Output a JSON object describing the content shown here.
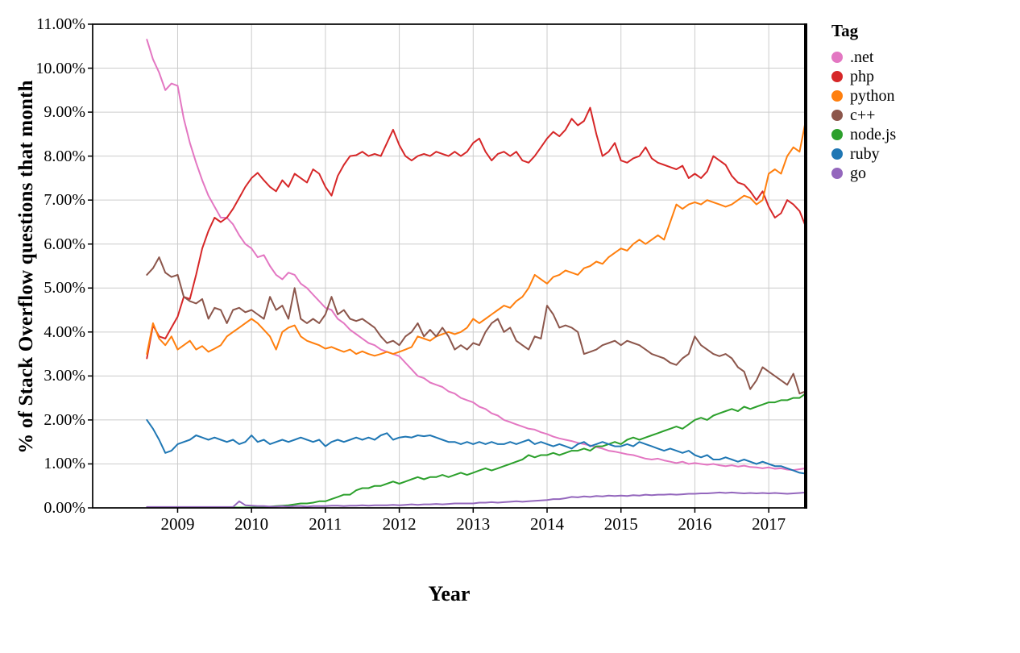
{
  "chart_data": {
    "type": "line",
    "title": "",
    "xlabel": "Year",
    "ylabel": "% of Stack Overflow questions that month",
    "legend_title": "Tag",
    "legend_position": "right",
    "grid": true,
    "grid_color": "#cccccc",
    "xlim": [
      2007.85,
      2017.5
    ],
    "ylim": [
      0,
      11
    ],
    "x_tick_values": [
      2009,
      2010,
      2011,
      2012,
      2013,
      2014,
      2015,
      2016,
      2017
    ],
    "x_tick_labels": [
      "2009",
      "2010",
      "2011",
      "2012",
      "2013",
      "2014",
      "2015",
      "2016",
      "2017"
    ],
    "y_tick_values": [
      0,
      1,
      2,
      3,
      4,
      5,
      6,
      7,
      8,
      9,
      10,
      11
    ],
    "y_tick_labels": [
      "0.00%",
      "1.00%",
      "2.00%",
      "3.00%",
      "4.00%",
      "5.00%",
      "6.00%",
      "7.00%",
      "8.00%",
      "9.00%",
      "10.00%",
      "11.00%"
    ],
    "x_start": 2008.5833,
    "x_step": 0.083333,
    "series": [
      {
        "name": ".net",
        "color": "#e377c2",
        "values": [
          10.65,
          10.2,
          9.9,
          9.5,
          9.65,
          9.6,
          8.85,
          8.3,
          7.85,
          7.45,
          7.1,
          6.85,
          6.6,
          6.6,
          6.45,
          6.2,
          6.0,
          5.9,
          5.7,
          5.75,
          5.5,
          5.3,
          5.2,
          5.35,
          5.3,
          5.1,
          5.0,
          4.85,
          4.7,
          4.55,
          4.5,
          4.3,
          4.2,
          4.05,
          3.95,
          3.85,
          3.75,
          3.7,
          3.6,
          3.55,
          3.5,
          3.45,
          3.3,
          3.15,
          3.0,
          2.95,
          2.85,
          2.8,
          2.75,
          2.65,
          2.6,
          2.5,
          2.45,
          2.4,
          2.3,
          2.25,
          2.15,
          2.1,
          2.0,
          1.95,
          1.9,
          1.85,
          1.8,
          1.78,
          1.72,
          1.68,
          1.62,
          1.58,
          1.55,
          1.52,
          1.48,
          1.45,
          1.42,
          1.38,
          1.35,
          1.3,
          1.28,
          1.25,
          1.22,
          1.2,
          1.16,
          1.12,
          1.1,
          1.12,
          1.08,
          1.05,
          1.02,
          1.05,
          1.0,
          1.02,
          1.0,
          0.98,
          1.0,
          0.97,
          0.95,
          0.97,
          0.94,
          0.96,
          0.93,
          0.92,
          0.9,
          0.92,
          0.89,
          0.9,
          0.87,
          0.86,
          0.88,
          0.9
        ]
      },
      {
        "name": "php",
        "color": "#d62728",
        "values": [
          3.4,
          4.15,
          3.9,
          3.85,
          4.1,
          4.35,
          4.8,
          4.75,
          5.3,
          5.9,
          6.3,
          6.6,
          6.5,
          6.6,
          6.8,
          7.05,
          7.3,
          7.5,
          7.62,
          7.45,
          7.3,
          7.2,
          7.45,
          7.3,
          7.6,
          7.5,
          7.4,
          7.7,
          7.6,
          7.3,
          7.1,
          7.55,
          7.8,
          8.0,
          8.02,
          8.1,
          8.0,
          8.05,
          8.0,
          8.3,
          8.6,
          8.25,
          8.0,
          7.9,
          8.0,
          8.05,
          8.0,
          8.1,
          8.05,
          8.0,
          8.1,
          8.0,
          8.1,
          8.3,
          8.4,
          8.1,
          7.9,
          8.05,
          8.1,
          8.0,
          8.1,
          7.9,
          7.85,
          8.0,
          8.2,
          8.4,
          8.55,
          8.45,
          8.6,
          8.85,
          8.7,
          8.8,
          9.1,
          8.5,
          8.0,
          8.1,
          8.3,
          7.9,
          7.85,
          7.95,
          8.0,
          8.2,
          7.95,
          7.85,
          7.8,
          7.75,
          7.7,
          7.78,
          7.5,
          7.6,
          7.5,
          7.65,
          8.0,
          7.9,
          7.8,
          7.55,
          7.4,
          7.35,
          7.2,
          7.0,
          7.2,
          6.85,
          6.6,
          6.7,
          7.0,
          6.9,
          6.75,
          6.4
        ]
      },
      {
        "name": "python",
        "color": "#ff7f0e",
        "values": [
          3.5,
          4.2,
          3.85,
          3.7,
          3.9,
          3.6,
          3.7,
          3.8,
          3.6,
          3.68,
          3.55,
          3.62,
          3.7,
          3.9,
          4.0,
          4.1,
          4.2,
          4.3,
          4.2,
          4.05,
          3.9,
          3.6,
          4.0,
          4.1,
          4.15,
          3.9,
          3.8,
          3.75,
          3.7,
          3.62,
          3.66,
          3.6,
          3.55,
          3.6,
          3.5,
          3.56,
          3.5,
          3.46,
          3.5,
          3.55,
          3.5,
          3.55,
          3.6,
          3.66,
          3.9,
          3.85,
          3.8,
          3.9,
          3.95,
          4.0,
          3.95,
          4.0,
          4.1,
          4.3,
          4.2,
          4.3,
          4.4,
          4.5,
          4.6,
          4.55,
          4.7,
          4.8,
          5.0,
          5.3,
          5.2,
          5.1,
          5.25,
          5.3,
          5.4,
          5.35,
          5.3,
          5.45,
          5.5,
          5.6,
          5.55,
          5.7,
          5.8,
          5.9,
          5.85,
          6.0,
          6.1,
          6.0,
          6.1,
          6.2,
          6.1,
          6.5,
          6.9,
          6.8,
          6.9,
          6.95,
          6.9,
          7.0,
          6.95,
          6.9,
          6.85,
          6.9,
          7.0,
          7.1,
          7.05,
          6.9,
          7.0,
          7.6,
          7.7,
          7.6,
          8.0,
          8.2,
          8.1,
          8.8
        ]
      },
      {
        "name": "c++",
        "color": "#8c564b",
        "values": [
          5.3,
          5.45,
          5.7,
          5.35,
          5.25,
          5.3,
          4.8,
          4.7,
          4.65,
          4.75,
          4.3,
          4.55,
          4.5,
          4.2,
          4.5,
          4.55,
          4.45,
          4.5,
          4.4,
          4.3,
          4.8,
          4.5,
          4.6,
          4.3,
          5.0,
          4.3,
          4.2,
          4.3,
          4.2,
          4.4,
          4.8,
          4.4,
          4.5,
          4.3,
          4.25,
          4.3,
          4.2,
          4.1,
          3.9,
          3.75,
          3.8,
          3.7,
          3.9,
          4.0,
          4.2,
          3.9,
          4.05,
          3.9,
          4.1,
          3.9,
          3.6,
          3.7,
          3.6,
          3.75,
          3.7,
          4.0,
          4.2,
          4.3,
          4.0,
          4.1,
          3.8,
          3.7,
          3.6,
          3.9,
          3.85,
          4.6,
          4.4,
          4.1,
          4.15,
          4.1,
          4.0,
          3.5,
          3.55,
          3.6,
          3.7,
          3.75,
          3.8,
          3.7,
          3.8,
          3.75,
          3.7,
          3.6,
          3.5,
          3.45,
          3.4,
          3.3,
          3.25,
          3.4,
          3.5,
          3.9,
          3.7,
          3.6,
          3.5,
          3.45,
          3.5,
          3.4,
          3.2,
          3.1,
          2.7,
          2.9,
          3.2,
          3.1,
          3.0,
          2.9,
          2.8,
          3.05,
          2.6,
          2.65
        ]
      },
      {
        "name": "node.js",
        "color": "#2ca02c",
        "values": [
          0.0,
          0.0,
          0.0,
          0.0,
          0.0,
          0.0,
          0.0,
          0.0,
          0.0,
          0.0,
          0.0,
          0.0,
          0.0,
          0.01,
          0.01,
          0.01,
          0.01,
          0.01,
          0.02,
          0.02,
          0.03,
          0.04,
          0.05,
          0.06,
          0.08,
          0.1,
          0.1,
          0.12,
          0.15,
          0.15,
          0.2,
          0.25,
          0.3,
          0.3,
          0.4,
          0.45,
          0.45,
          0.5,
          0.5,
          0.55,
          0.6,
          0.55,
          0.6,
          0.65,
          0.7,
          0.65,
          0.7,
          0.7,
          0.75,
          0.7,
          0.75,
          0.8,
          0.75,
          0.8,
          0.85,
          0.9,
          0.85,
          0.9,
          0.95,
          1.0,
          1.05,
          1.1,
          1.2,
          1.15,
          1.2,
          1.2,
          1.25,
          1.2,
          1.25,
          1.3,
          1.3,
          1.35,
          1.3,
          1.4,
          1.4,
          1.45,
          1.5,
          1.45,
          1.55,
          1.6,
          1.55,
          1.6,
          1.65,
          1.7,
          1.75,
          1.8,
          1.85,
          1.8,
          1.9,
          2.0,
          2.05,
          2.0,
          2.1,
          2.15,
          2.2,
          2.25,
          2.2,
          2.3,
          2.25,
          2.3,
          2.35,
          2.4,
          2.4,
          2.45,
          2.45,
          2.5,
          2.5,
          2.6
        ]
      },
      {
        "name": "ruby",
        "color": "#1f77b4",
        "values": [
          2.0,
          1.8,
          1.55,
          1.25,
          1.3,
          1.45,
          1.5,
          1.55,
          1.65,
          1.6,
          1.55,
          1.6,
          1.55,
          1.5,
          1.55,
          1.45,
          1.5,
          1.65,
          1.5,
          1.55,
          1.45,
          1.5,
          1.55,
          1.5,
          1.55,
          1.6,
          1.55,
          1.5,
          1.55,
          1.4,
          1.5,
          1.55,
          1.5,
          1.55,
          1.6,
          1.55,
          1.6,
          1.55,
          1.65,
          1.7,
          1.55,
          1.6,
          1.62,
          1.6,
          1.65,
          1.63,
          1.65,
          1.6,
          1.55,
          1.5,
          1.5,
          1.45,
          1.5,
          1.45,
          1.5,
          1.45,
          1.5,
          1.45,
          1.45,
          1.5,
          1.45,
          1.5,
          1.55,
          1.45,
          1.5,
          1.45,
          1.4,
          1.45,
          1.4,
          1.35,
          1.45,
          1.5,
          1.4,
          1.45,
          1.5,
          1.45,
          1.4,
          1.4,
          1.45,
          1.4,
          1.5,
          1.45,
          1.4,
          1.35,
          1.3,
          1.35,
          1.3,
          1.25,
          1.3,
          1.2,
          1.15,
          1.2,
          1.1,
          1.1,
          1.15,
          1.1,
          1.05,
          1.1,
          1.05,
          1.0,
          1.05,
          1.0,
          0.95,
          0.95,
          0.9,
          0.85,
          0.8,
          0.78
        ]
      },
      {
        "name": "go",
        "color": "#9467bd",
        "values": [
          0.02,
          0.02,
          0.02,
          0.02,
          0.02,
          0.02,
          0.02,
          0.02,
          0.02,
          0.02,
          0.02,
          0.02,
          0.02,
          0.02,
          0.02,
          0.15,
          0.06,
          0.05,
          0.04,
          0.04,
          0.03,
          0.03,
          0.04,
          0.03,
          0.04,
          0.04,
          0.03,
          0.04,
          0.04,
          0.04,
          0.05,
          0.05,
          0.04,
          0.05,
          0.05,
          0.06,
          0.05,
          0.06,
          0.06,
          0.06,
          0.07,
          0.06,
          0.07,
          0.08,
          0.07,
          0.08,
          0.08,
          0.09,
          0.08,
          0.09,
          0.1,
          0.1,
          0.1,
          0.1,
          0.12,
          0.12,
          0.13,
          0.12,
          0.13,
          0.14,
          0.15,
          0.14,
          0.15,
          0.16,
          0.17,
          0.18,
          0.2,
          0.2,
          0.22,
          0.25,
          0.24,
          0.26,
          0.25,
          0.27,
          0.26,
          0.28,
          0.27,
          0.28,
          0.27,
          0.29,
          0.28,
          0.3,
          0.29,
          0.3,
          0.3,
          0.31,
          0.3,
          0.31,
          0.32,
          0.32,
          0.33,
          0.33,
          0.34,
          0.35,
          0.34,
          0.35,
          0.34,
          0.33,
          0.34,
          0.33,
          0.34,
          0.33,
          0.34,
          0.33,
          0.32,
          0.33,
          0.34,
          0.35
        ]
      }
    ]
  }
}
